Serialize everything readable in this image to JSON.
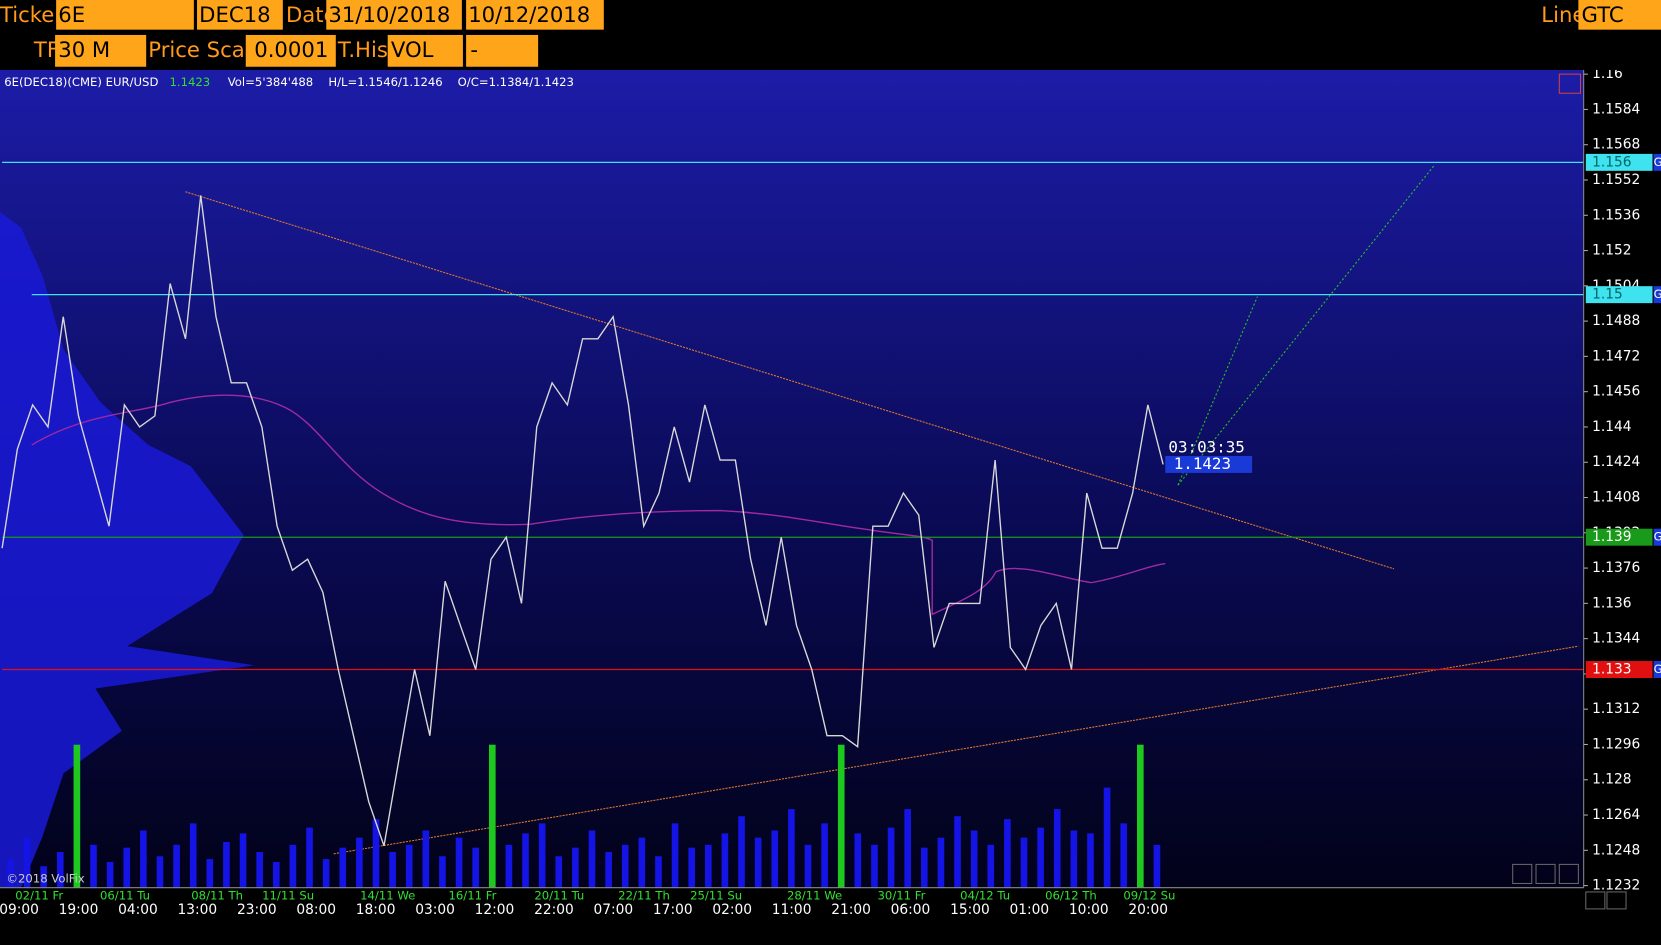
{
  "toolbar": {
    "ticker_label": "Ticker",
    "ticker": "6E",
    "contract": "DEC18",
    "date_label": "Date",
    "date_from": "31/10/2018",
    "date_to": "10/12/2018",
    "line_label": "Line",
    "line": "GTC",
    "tf_label": "TF",
    "tf": "30 M",
    "price_scale_label": "Price Scale",
    "price_scale": "0.0001",
    "thist_label": "T.Hist",
    "thist": "VOL",
    "extra": "-"
  },
  "chart_data": {
    "type": "line",
    "header": {
      "symbol": "6E(DEC18)(CME) EUR/USD",
      "last": "1.1423",
      "volume": "Vol=5'384'488",
      "high_low": "H/L=1.1546/1.1246",
      "open_close": "O/C=1.1384/1.1423"
    },
    "copyright": "©2018 VolFix",
    "timer": "03:03:35",
    "last_price": 1.1423,
    "ylim": [
      1.1232,
      1.16
    ],
    "yticks": [
      1.16,
      1.1584,
      1.1568,
      1.1552,
      1.1536,
      1.152,
      1.1504,
      1.1488,
      1.1472,
      1.1456,
      1.144,
      1.1424,
      1.1408,
      1.1392,
      1.1376,
      1.136,
      1.1344,
      1.1328,
      1.1312,
      1.1296,
      1.128,
      1.1264,
      1.1248,
      1.1232
    ],
    "levels": [
      {
        "value": 1.156,
        "color": "#3fe3ef"
      },
      {
        "value": 1.15,
        "color": "#3fe3ef"
      },
      {
        "value": 1.139,
        "color": "#1a9a1a"
      },
      {
        "value": 1.133,
        "color": "#e01010"
      }
    ],
    "level_tag": "G",
    "x_dates": [
      "02/11 Fr",
      "06/11 Tu",
      "08/11 Th",
      "11/11 Su",
      "14/11 We",
      "16/11 Fr",
      "20/11 Tu",
      "22/11 Th",
      "25/11 Su",
      "28/11 We",
      "30/11 Fr",
      "04/12 Tu",
      "06/12 Th",
      "09/12 Su"
    ],
    "x_times": [
      "09:00",
      "19:00",
      "04:00",
      "13:00",
      "23:00",
      "08:00",
      "18:00",
      "03:00",
      "12:00",
      "22:00",
      "07:00",
      "17:00",
      "02:00",
      "11:00",
      "21:00",
      "06:00",
      "15:00",
      "01:00",
      "10:00",
      "20:00"
    ],
    "price": {
      "color": "#d8d8d8",
      "values": [
        1.1385,
        1.143,
        1.145,
        1.144,
        1.149,
        1.1445,
        1.142,
        1.1395,
        1.145,
        1.144,
        1.1445,
        1.1505,
        1.148,
        1.1545,
        1.149,
        1.146,
        1.146,
        1.144,
        1.1395,
        1.1375,
        1.138,
        1.1365,
        1.133,
        1.13,
        1.127,
        1.125,
        1.129,
        1.133,
        1.13,
        1.137,
        1.135,
        1.133,
        1.138,
        1.139,
        1.136,
        1.144,
        1.146,
        1.145,
        1.148,
        1.148,
        1.149,
        1.145,
        1.1395,
        1.141,
        1.144,
        1.1415,
        1.145,
        1.1425,
        1.1425,
        1.138,
        1.135,
        1.139,
        1.135,
        1.133,
        1.13,
        1.13,
        1.1295,
        1.1395,
        1.1395,
        1.141,
        1.14,
        1.134,
        1.136,
        1.136,
        1.136,
        1.1425,
        1.134,
        1.133,
        1.135,
        1.136,
        1.133,
        1.141,
        1.1385,
        1.1385,
        1.141,
        1.145,
        1.1423
      ]
    },
    "volume": [
      {
        "color": "#1414e6",
        "values": [
          20,
          35,
          15,
          25,
          null,
          30,
          18,
          28,
          40,
          22,
          30,
          45,
          20,
          32,
          38,
          25,
          18,
          30,
          42,
          20,
          28,
          35,
          48,
          25,
          30,
          40,
          22,
          35,
          28,
          null,
          30,
          38,
          45,
          22,
          28,
          40,
          25,
          30,
          35,
          22,
          45,
          28,
          30,
          38,
          50,
          35,
          40,
          55,
          30,
          45,
          null,
          38,
          30,
          42,
          55,
          28,
          35,
          50,
          40,
          30,
          48,
          35,
          42,
          55,
          40,
          38,
          70,
          45,
          null,
          30
        ]
      },
      {
        "color": "#1ec81e",
        "values": [
          null,
          null,
          null,
          null,
          100,
          null,
          null,
          null,
          null,
          null,
          null,
          null,
          null,
          null,
          null,
          null,
          null,
          null,
          null,
          null,
          null,
          null,
          null,
          null,
          null,
          null,
          null,
          null,
          null,
          100,
          null,
          null,
          null,
          null,
          null,
          null,
          null,
          null,
          null,
          null,
          null,
          null,
          null,
          null,
          null,
          null,
          null,
          null,
          null,
          null,
          100,
          null,
          null,
          null,
          null,
          null,
          null,
          null,
          null,
          null,
          null,
          null,
          null,
          null,
          null,
          null,
          null,
          null,
          100,
          null
        ]
      }
    ]
  }
}
